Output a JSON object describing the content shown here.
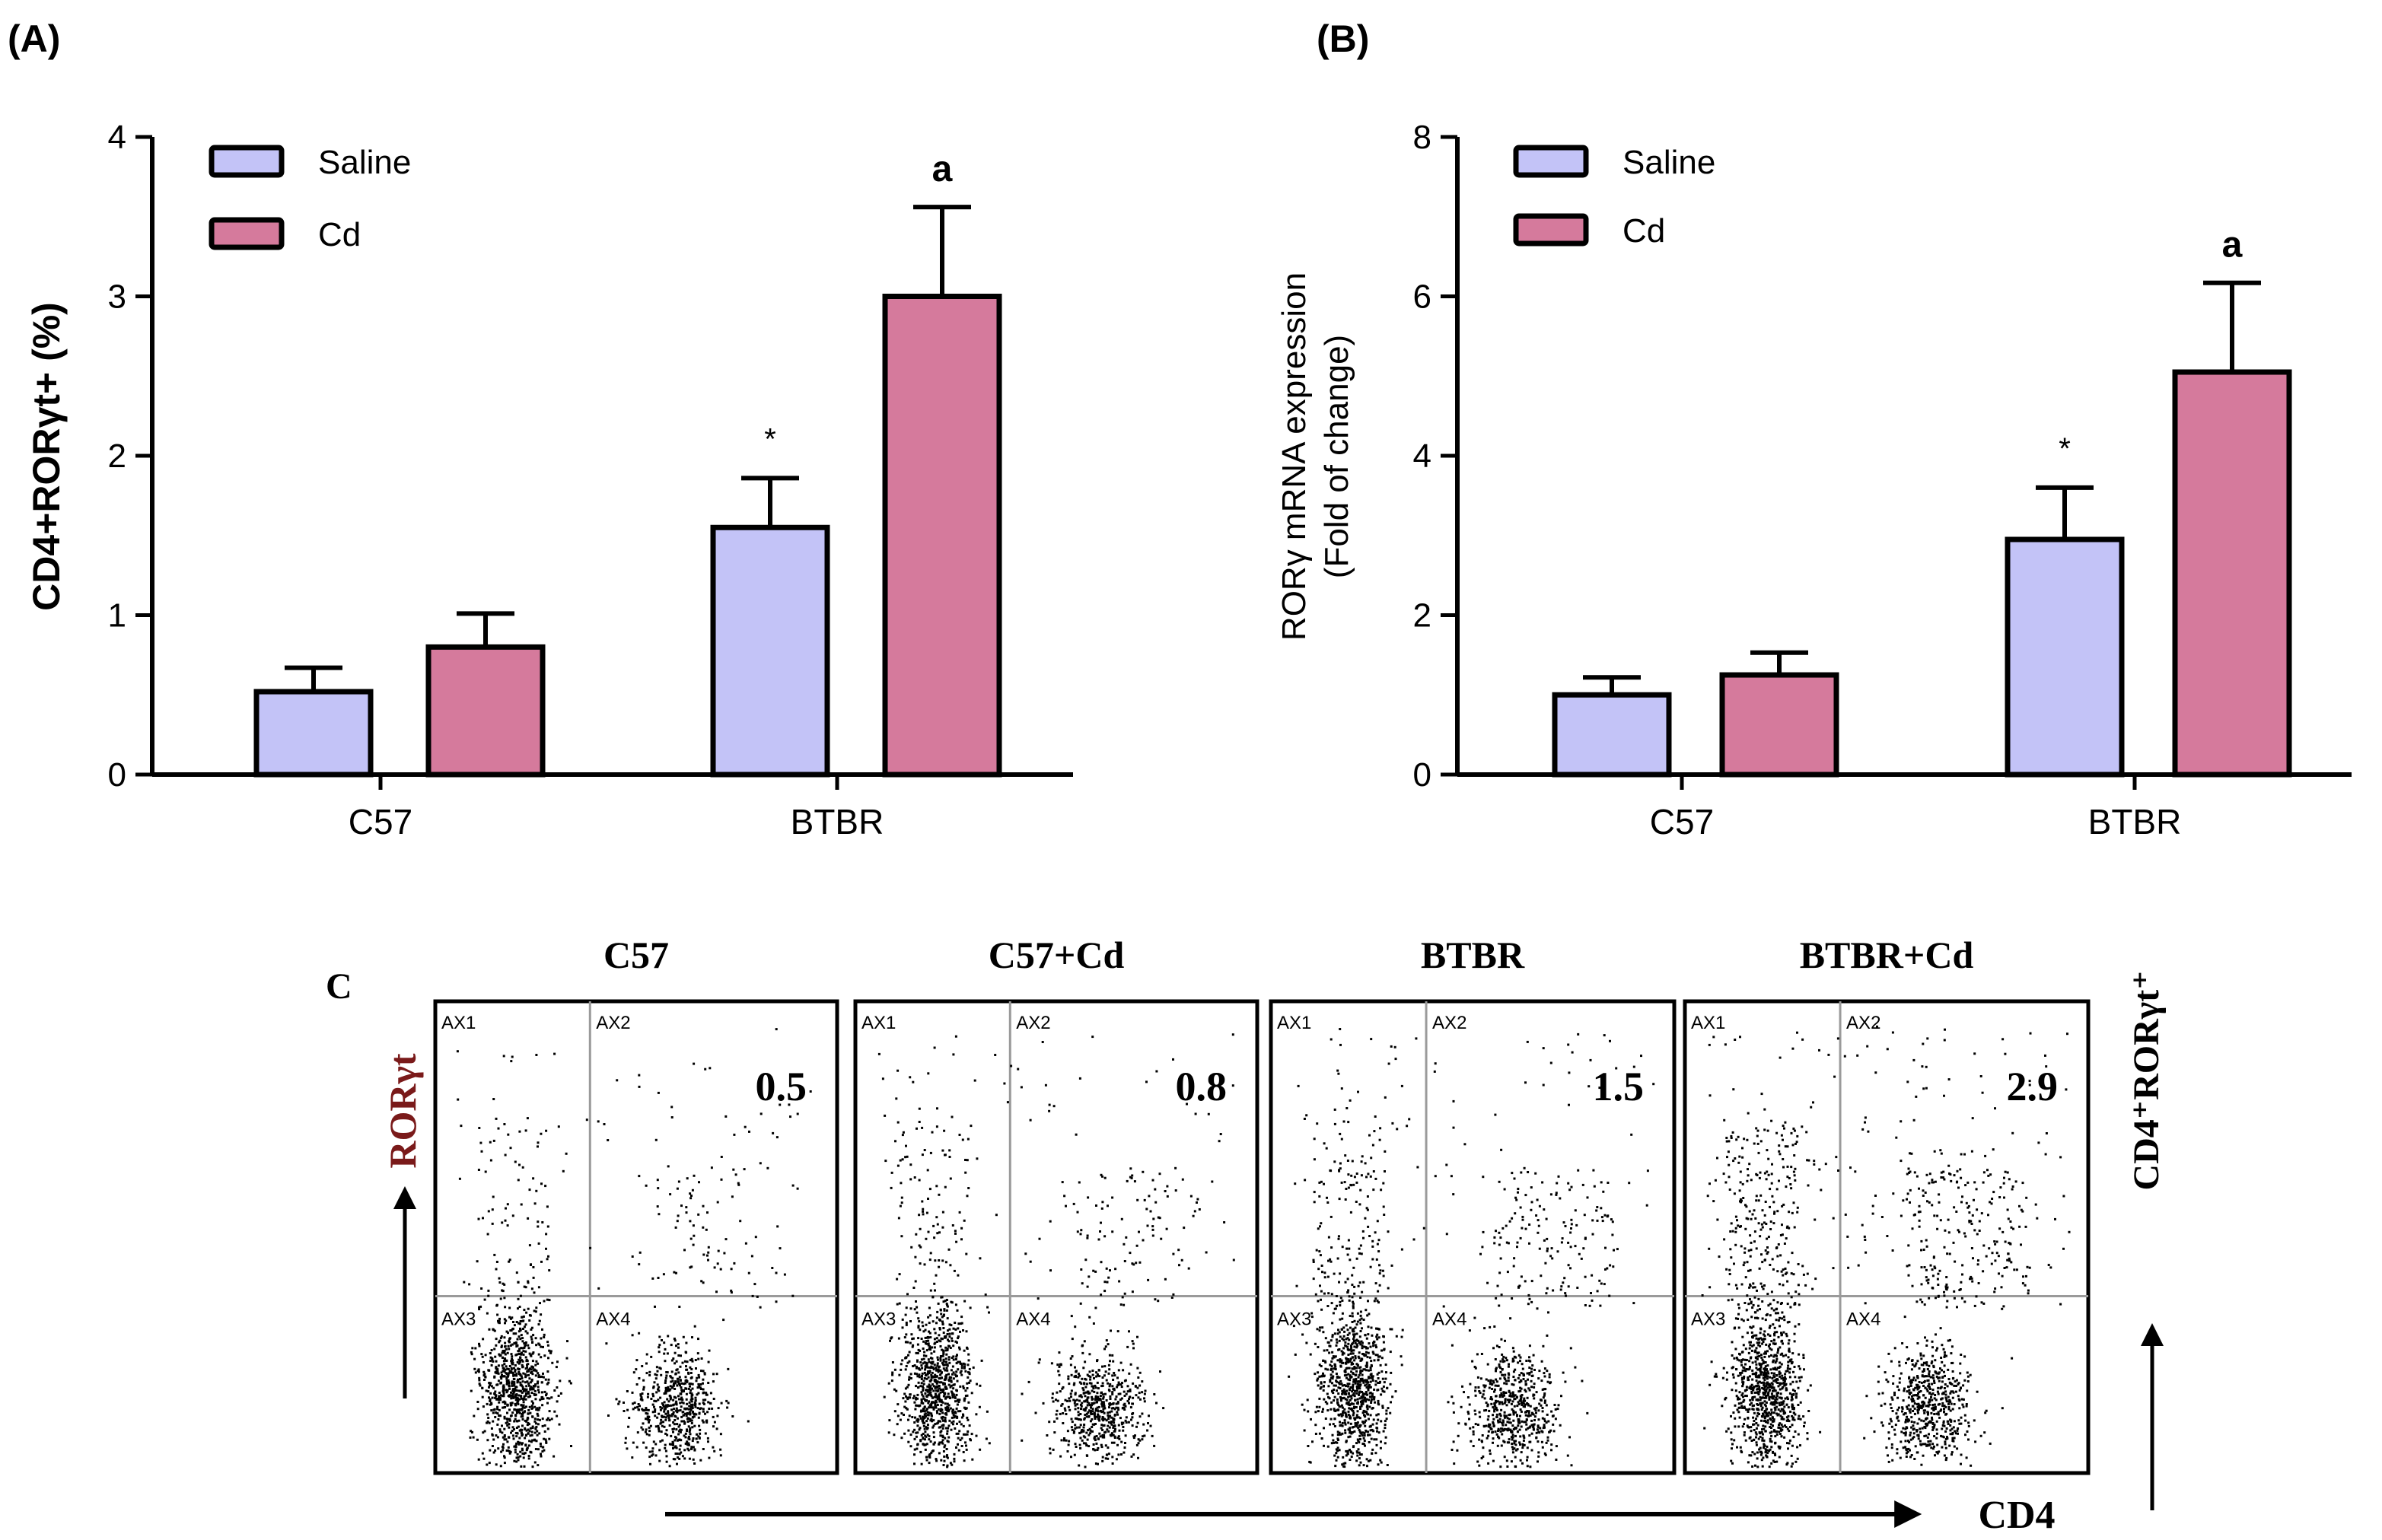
{
  "colors": {
    "saline": "#c3c3f7",
    "cd": "#d57a9c",
    "stroke": "#000000",
    "dots": "#000000",
    "gate": "#9a9a9a"
  },
  "chart_data": [
    {
      "panel": "(A)",
      "type": "bar",
      "categories": [
        "C57",
        "BTBR"
      ],
      "ylabel": "CD4+RORγt+ (%)",
      "ylim": [
        0,
        4
      ],
      "yticks": [
        "0",
        "1",
        "2",
        "3",
        "4"
      ],
      "legend_position": "top-left",
      "series": [
        {
          "name": "Saline",
          "color_key": "saline",
          "values": [
            0.52,
            1.55
          ],
          "errors": [
            0.15,
            0.31
          ]
        },
        {
          "name": "Cd",
          "color_key": "cd",
          "values": [
            0.8,
            3.0
          ],
          "errors": [
            0.21,
            0.56
          ]
        }
      ],
      "annotations": [
        {
          "text": "*",
          "category": "BTBR",
          "series": "Saline"
        },
        {
          "text": "a",
          "category": "BTBR",
          "series": "Cd"
        }
      ]
    },
    {
      "panel": "(B)",
      "type": "bar",
      "categories": [
        "C57",
        "BTBR"
      ],
      "ylabel": "RORγ mRNA expression",
      "ylabel2": "(Fold of change)",
      "ylim": [
        0,
        8
      ],
      "yticks": [
        "0",
        "2",
        "4",
        "6",
        "8"
      ],
      "legend_position": "top-left",
      "series": [
        {
          "name": "Saline",
          "color_key": "saline",
          "values": [
            1.0,
            2.95
          ],
          "errors": [
            0.22,
            0.65
          ]
        },
        {
          "name": "Cd",
          "color_key": "cd",
          "values": [
            1.25,
            5.05
          ],
          "errors": [
            0.28,
            1.12
          ]
        }
      ],
      "annotations": [
        {
          "text": "*",
          "category": "BTBR",
          "series": "Saline"
        },
        {
          "text": "a",
          "category": "BTBR",
          "series": "Cd"
        }
      ]
    }
  ],
  "panel_c": {
    "label": "C",
    "y_axis_label": "RORγt",
    "x_axis_label": "CD4",
    "right_label": "CD4⁺RORγt⁺",
    "quadrant_labels": [
      "AX1",
      "AX2",
      "AX3",
      "AX4"
    ],
    "plots": [
      {
        "title": "C57",
        "value": "0.5"
      },
      {
        "title": "C57+Cd",
        "value": "0.8"
      },
      {
        "title": "BTBR",
        "value": "1.5"
      },
      {
        "title": "BTBR+Cd",
        "value": "2.9"
      }
    ]
  }
}
